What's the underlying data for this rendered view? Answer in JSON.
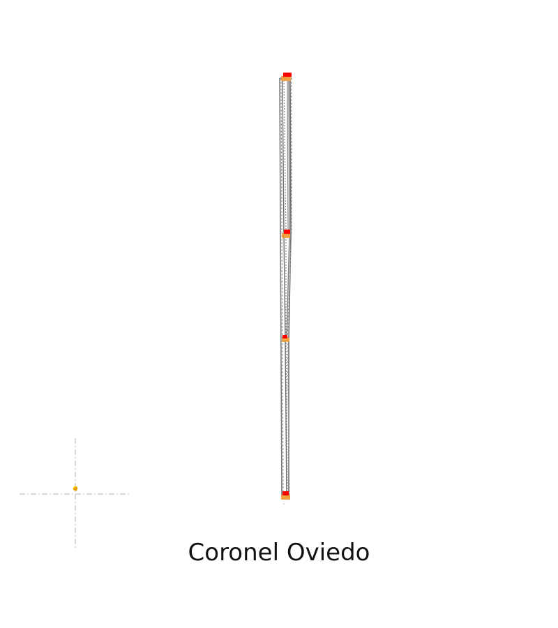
{
  "map": {
    "title": "Coronel Oviedo",
    "colors": {
      "route_line": "#7a7a7a",
      "stop_fill": "#ff0000",
      "stop_accent": "#f0a040",
      "origin_marker": "#ffd000",
      "crosshair": "#cfcfcf",
      "background": "#ffffff"
    },
    "icons": [
      "stop-marker-icon",
      "origin-marker-icon",
      "crosshair-icon"
    ]
  }
}
